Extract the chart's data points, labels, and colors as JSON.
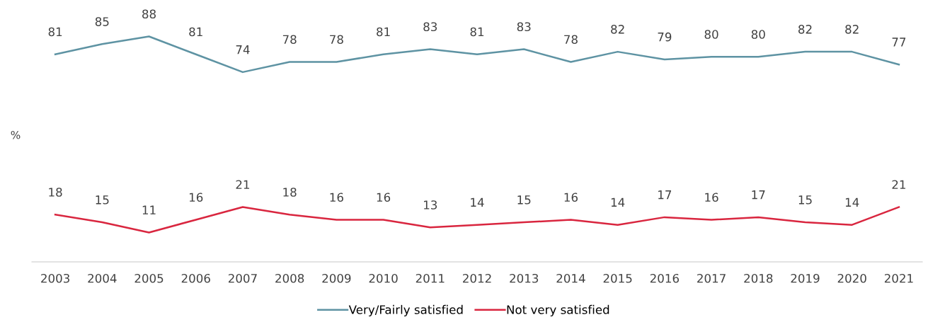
{
  "chart_data": {
    "type": "line",
    "ylabel": "%",
    "categories": [
      "2003",
      "2004",
      "2005",
      "2006",
      "2007",
      "2008",
      "2009",
      "2010",
      "2011",
      "2012",
      "2013",
      "2014",
      "2015",
      "2016",
      "2017",
      "2018",
      "2019",
      "2020",
      "2021"
    ],
    "series": [
      {
        "name": "Very/Fairly satisfied",
        "color": "#5e93a3",
        "values": [
          81,
          85,
          88,
          81,
          74,
          78,
          78,
          81,
          83,
          81,
          83,
          78,
          82,
          79,
          80,
          80,
          82,
          82,
          77
        ]
      },
      {
        "name": "Not very satisfied",
        "color": "#d9263f",
        "values": [
          18,
          15,
          11,
          16,
          21,
          18,
          16,
          16,
          13,
          14,
          15,
          16,
          14,
          17,
          16,
          17,
          15,
          14,
          21
        ]
      }
    ],
    "tick_labels": "x",
    "data_labels": true,
    "grid": false,
    "legend": "bottom",
    "marker": "none",
    "line_style": "solid"
  }
}
